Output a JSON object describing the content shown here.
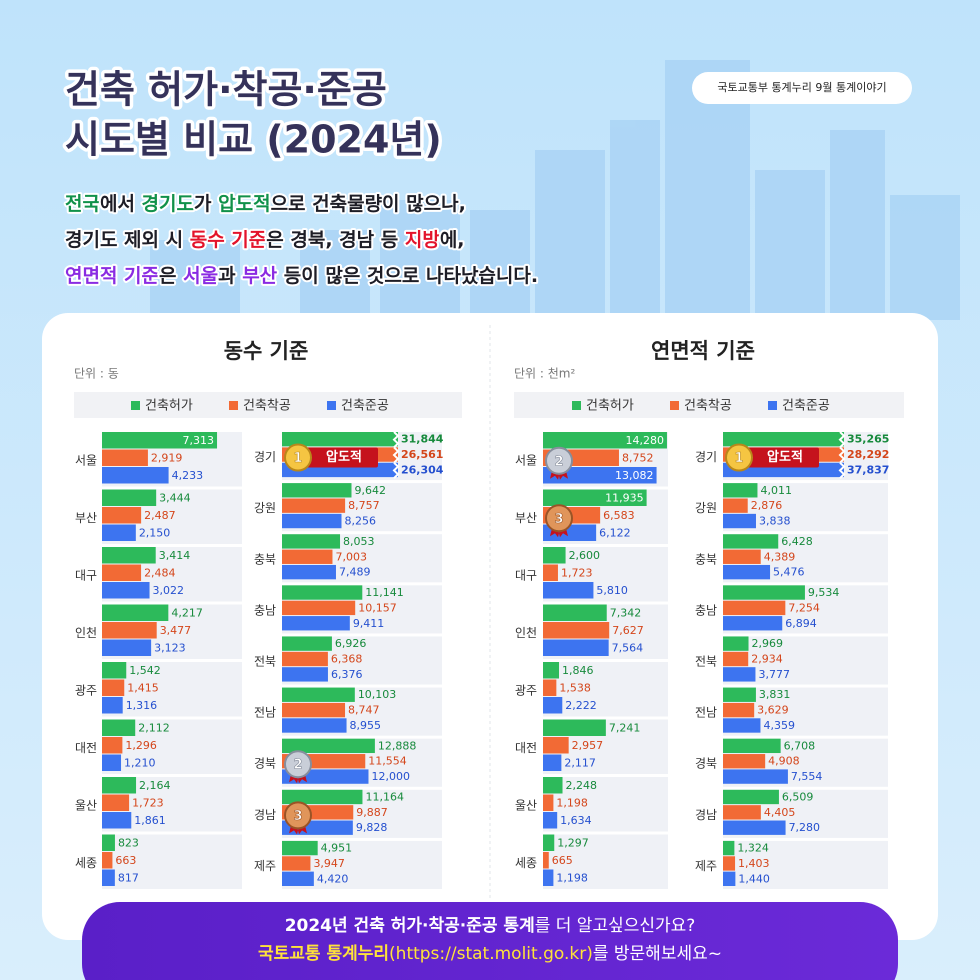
{
  "header": {
    "badge": "국토교통부 통계누리 9월 통계이야기",
    "title_lines": [
      "건축 허가·착공·준공",
      "시도별 비교 (2024년)"
    ],
    "description_lines": [
      [
        {
          "text": "전국",
          "color": "#11914a"
        },
        {
          "text": "에서 "
        },
        {
          "text": "경기도",
          "color": "#11914a"
        },
        {
          "text": "가 "
        },
        {
          "text": "압도적",
          "color": "#11914a"
        },
        {
          "text": "으로 건축물량이 많으나,"
        }
      ],
      [
        {
          "text": "경기도 제외 시 "
        },
        {
          "text": "동수 기준",
          "color": "#e3132b"
        },
        {
          "text": "은 경북, 경남 등 "
        },
        {
          "text": "지방",
          "color": "#e3132b"
        },
        {
          "text": "에,"
        }
      ],
      [
        {
          "text": "연면적 기준",
          "color": "#8a2be2"
        },
        {
          "text": "은 "
        },
        {
          "text": "서울",
          "color": "#8a2be2"
        },
        {
          "text": "과 "
        },
        {
          "text": "부산",
          "color": "#8a2be2"
        },
        {
          "text": " 등이 많은 것으로 나타났습니다."
        }
      ]
    ]
  },
  "chart_data": [
    {
      "type": "bar",
      "orientation": "horizontal",
      "title": "동수 기준",
      "unit": "단위 : 동",
      "categories": [
        [
          "서울",
          "부산",
          "대구",
          "인천",
          "광주",
          "대전",
          "울산",
          "세종"
        ],
        [
          "경기",
          "강원",
          "충북",
          "충남",
          "전북",
          "전남",
          "경북",
          "경남",
          "제주"
        ]
      ],
      "xlim": [
        [
          0,
          8900
        ],
        [
          0,
          22200
        ]
      ],
      "series": [
        {
          "name": "건축허가",
          "color": "#2dba5b",
          "label_color": "#178a3c",
          "values": [
            [
              7313,
              3444,
              3414,
              4217,
              1542,
              2112,
              2164,
              823
            ],
            [
              31844,
              9642,
              8053,
              11141,
              6926,
              10103,
              12888,
              11164,
              4951
            ]
          ],
          "value_labels": [
            [
              "7,313",
              "3,444",
              "3,414",
              "4,217",
              "1,542",
              "2,112",
              "2,164",
              "823"
            ],
            [
              "31,844",
              "9,642",
              "8,053",
              "11,141",
              "6,926",
              "10,103",
              "12,888",
              "11,164",
              "4,951"
            ]
          ]
        },
        {
          "name": "건축착공",
          "color": "#f26a35",
          "label_color": "#d4461b",
          "values": [
            [
              2919,
              2487,
              2484,
              3477,
              1415,
              1296,
              1723,
              663
            ],
            [
              26561,
              8757,
              7003,
              10157,
              6368,
              8747,
              11554,
              9887,
              3947
            ]
          ],
          "value_labels": [
            [
              "2,919",
              "2,487",
              "2,484",
              "3,477",
              "1,415",
              "1,296",
              "1,723",
              "663"
            ],
            [
              "26,561",
              "8,757",
              "7,003",
              "10,157",
              "6,368",
              "8,747",
              "11,554",
              "9,887",
              "3,947"
            ]
          ]
        },
        {
          "name": "건축준공",
          "color": "#3d74f0",
          "label_color": "#2550cf",
          "values": [
            [
              4233,
              2150,
              3022,
              3123,
              1316,
              1210,
              1861,
              817
            ],
            [
              26304,
              8256,
              7489,
              9411,
              6376,
              8955,
              12000,
              9828,
              4420
            ]
          ],
          "value_labels": [
            [
              "4,233",
              "2,150",
              "3,022",
              "3,123",
              "1,316",
              "1,210",
              "1,861",
              "817"
            ],
            [
              "26,304",
              "8,256",
              "7,489",
              "9,411",
              "6,376",
              "8,955",
              "12,000",
              "9,828",
              "4,420"
            ]
          ]
        }
      ],
      "ranks": [
        {
          "rank": 1,
          "category": "경기",
          "label": "압도적"
        },
        {
          "rank": 2,
          "category": "경북"
        },
        {
          "rank": 3,
          "category": "경남"
        }
      ]
    },
    {
      "type": "bar",
      "orientation": "horizontal",
      "title": "연면적 기준",
      "unit": "단위 : 천m²",
      "categories": [
        [
          "서울",
          "부산",
          "대구",
          "인천",
          "광주",
          "대전",
          "울산",
          "세종"
        ],
        [
          "경기",
          "강원",
          "충북",
          "충남",
          "전북",
          "전남",
          "경북",
          "경남",
          "제주"
        ]
      ],
      "xlim": [
        [
          0,
          14400
        ],
        [
          0,
          19200
        ]
      ],
      "series": [
        {
          "name": "건축허가",
          "color": "#2dba5b",
          "label_color": "#178a3c",
          "values": [
            [
              14280,
              11935,
              2600,
              7342,
              1846,
              7241,
              2248,
              1297
            ],
            [
              35265,
              4011,
              6428,
              9534,
              2969,
              3831,
              6708,
              6509,
              1324
            ]
          ],
          "value_labels": [
            [
              "14,280",
              "11,935",
              "2,600",
              "7,342",
              "1,846",
              "7,241",
              "2,248",
              "1,297"
            ],
            [
              "35,265",
              "4,011",
              "6,428",
              "9,534",
              "2,969",
              "3,831",
              "6,708",
              "6,509",
              "1,324"
            ]
          ]
        },
        {
          "name": "건축착공",
          "color": "#f26a35",
          "label_color": "#d4461b",
          "values": [
            [
              8752,
              6583,
              1723,
              7627,
              1538,
              2957,
              1198,
              665
            ],
            [
              28292,
              2876,
              4389,
              7254,
              2934,
              3629,
              4908,
              4405,
              1403
            ]
          ],
          "value_labels": [
            [
              "8,752",
              "6,583",
              "1,723",
              "7,627",
              "1,538",
              "2,957",
              "1,198",
              "665"
            ],
            [
              "28,292",
              "2,876",
              "4,389",
              "7,254",
              "2,934",
              "3,629",
              "4,908",
              "4,405",
              "1,403"
            ]
          ]
        },
        {
          "name": "건축준공",
          "color": "#3d74f0",
          "label_color": "#2550cf",
          "values": [
            [
              13082,
              6122,
              5810,
              7564,
              2222,
              2117,
              1634,
              1198
            ],
            [
              37837,
              3838,
              5476,
              6894,
              3777,
              4359,
              7554,
              7280,
              1440
            ]
          ],
          "value_labels": [
            [
              "13,082",
              "6,122",
              "5,810",
              "7,564",
              "2,222",
              "2,117",
              "1,634",
              "1,198"
            ],
            [
              "37,837",
              "3,838",
              "5,476",
              "6,894",
              "3,777",
              "4,359",
              "7,554",
              "7,280",
              "1,440"
            ]
          ]
        }
      ],
      "ranks": [
        {
          "rank": 1,
          "category": "경기",
          "label": "압도적"
        },
        {
          "rank": 2,
          "category": "서울"
        },
        {
          "rank": 3,
          "category": "부산"
        }
      ]
    }
  ],
  "footer": {
    "lines": [
      [
        {
          "text": "2024년 건축 허가·착공·준공 통계",
          "bold": true
        },
        {
          "text": "를 더 알고싶으신가요?"
        }
      ],
      [
        {
          "text": "국토교통 통계누리",
          "color": "#ffe23a",
          "bold": true
        },
        {
          "text": "(https://stat.molit.go.kr)",
          "color": "#ffe23a"
        },
        {
          "text": "를 방문해보세요~"
        }
      ]
    ]
  }
}
